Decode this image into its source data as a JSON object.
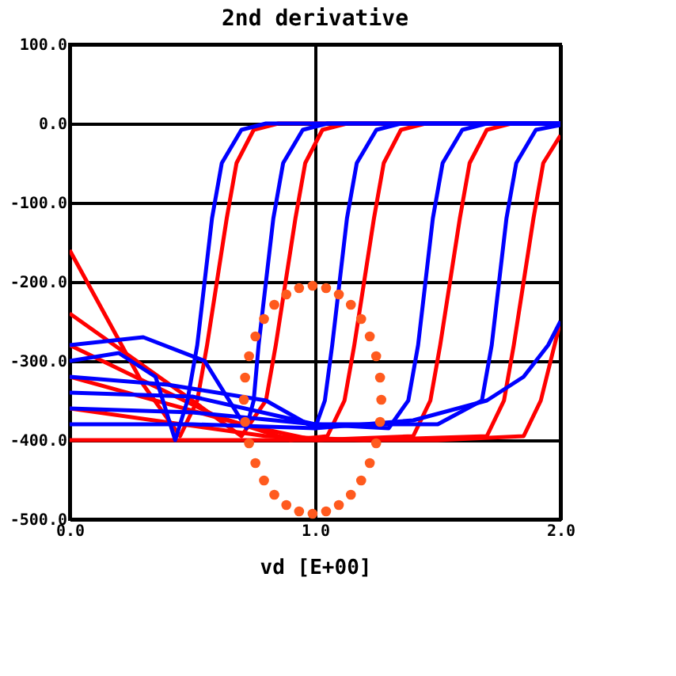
{
  "chart_data": {
    "type": "line",
    "title": "2nd derivative",
    "xlabel": "vd   [E+00]",
    "xlim": [
      0,
      2
    ],
    "xticks": [
      {
        "value": 0,
        "label": "0.0"
      },
      {
        "value": 1,
        "label": "1.0"
      },
      {
        "value": 2,
        "label": "2.0"
      }
    ],
    "ylim": [
      -500,
      100
    ],
    "yticks": [
      {
        "value": 100,
        "label": "100.0"
      },
      {
        "value": 0,
        "label": "0.0"
      },
      {
        "value": -100,
        "label": "-100.0"
      },
      {
        "value": -200,
        "label": "-200.0"
      },
      {
        "value": -300,
        "label": "-300.0"
      },
      {
        "value": -400,
        "label": "-400.0"
      },
      {
        "value": -500,
        "label": "-500.0"
      }
    ],
    "grid": true,
    "legend": false,
    "line_style": "solid",
    "marker": "none",
    "series": [
      {
        "color": "#ff0000",
        "x": [
          0,
          0.3,
          0.45,
          0.52,
          0.56,
          0.6,
          0.64,
          0.68,
          0.75,
          0.85,
          2.0
        ],
        "values": [
          -160,
          -330,
          -395,
          -350,
          -280,
          -200,
          -120,
          -50,
          -8,
          0,
          0
        ]
      },
      {
        "color": "#ff0000",
        "x": [
          0,
          0.5,
          0.7,
          0.8,
          0.84,
          0.88,
          0.92,
          0.96,
          1.03,
          1.13,
          2.0
        ],
        "values": [
          -240,
          -350,
          -395,
          -350,
          -280,
          -200,
          -120,
          -50,
          -8,
          0,
          0
        ]
      },
      {
        "color": "#ff0000",
        "x": [
          0,
          0.6,
          0.9,
          1.05,
          1.12,
          1.16,
          1.2,
          1.24,
          1.28,
          1.35,
          1.45,
          2.0
        ],
        "values": [
          -280,
          -370,
          -400,
          -395,
          -350,
          -280,
          -200,
          -120,
          -50,
          -8,
          0,
          0
        ]
      },
      {
        "color": "#ff0000",
        "x": [
          0,
          0.7,
          1.0,
          1.4,
          1.47,
          1.51,
          1.55,
          1.59,
          1.63,
          1.7,
          1.8,
          2.0
        ],
        "values": [
          -320,
          -380,
          -400,
          -395,
          -350,
          -280,
          -200,
          -120,
          -50,
          -8,
          0,
          0
        ]
      },
      {
        "color": "#ff0000",
        "x": [
          0,
          0.8,
          1.2,
          1.7,
          1.77,
          1.81,
          1.85,
          1.89,
          1.93,
          2.0
        ],
        "values": [
          -360,
          -395,
          -400,
          -395,
          -350,
          -280,
          -200,
          -120,
          -50,
          -15
        ]
      },
      {
        "color": "#ff0000",
        "x": [
          0,
          1.0,
          1.5,
          1.85,
          1.92,
          1.96,
          2.0
        ],
        "values": [
          -400,
          -400,
          -400,
          -395,
          -350,
          -300,
          -250
        ]
      },
      {
        "color": "#0000ff",
        "x": [
          0,
          0.2,
          0.35,
          0.43,
          0.48,
          0.52,
          0.55,
          0.58,
          0.62,
          0.7,
          0.8,
          2.0
        ],
        "values": [
          -300,
          -290,
          -320,
          -400,
          -350,
          -280,
          -200,
          -120,
          -50,
          -8,
          0,
          0
        ]
      },
      {
        "color": "#0000ff",
        "x": [
          0,
          0.3,
          0.55,
          0.72,
          0.75,
          0.77,
          0.8,
          0.83,
          0.87,
          0.95,
          1.05,
          2.0
        ],
        "values": [
          -280,
          -270,
          -300,
          -385,
          -350,
          -280,
          -200,
          -120,
          -50,
          -8,
          0,
          0
        ]
      },
      {
        "color": "#0000ff",
        "x": [
          0,
          0.4,
          0.8,
          1.0,
          1.04,
          1.07,
          1.1,
          1.13,
          1.17,
          1.25,
          1.35,
          2.0
        ],
        "values": [
          -320,
          -330,
          -350,
          -385,
          -350,
          -280,
          -200,
          -120,
          -50,
          -8,
          0,
          0
        ]
      },
      {
        "color": "#0000ff",
        "x": [
          0,
          0.5,
          1.0,
          1.3,
          1.38,
          1.42,
          1.45,
          1.48,
          1.52,
          1.6,
          1.7,
          2.0
        ],
        "values": [
          -340,
          -345,
          -380,
          -385,
          -350,
          -280,
          -200,
          -120,
          -50,
          -8,
          0,
          0
        ]
      },
      {
        "color": "#0000ff",
        "x": [
          0,
          0.5,
          1.0,
          1.5,
          1.68,
          1.72,
          1.75,
          1.78,
          1.82,
          1.9,
          2.0
        ],
        "values": [
          -360,
          -365,
          -380,
          -380,
          -350,
          -280,
          -200,
          -120,
          -50,
          -8,
          -2
        ]
      },
      {
        "color": "#0000ff",
        "x": [
          0,
          0.5,
          1.0,
          1.4,
          1.7,
          1.85,
          1.95,
          2.0
        ],
        "values": [
          -380,
          -380,
          -385,
          -375,
          -350,
          -320,
          -280,
          -250
        ]
      },
      {
        "type": "scatter",
        "marker": "circle",
        "color": "#ff5a1e",
        "x": [
          1.27,
          1.265,
          1.249,
          1.223,
          1.188,
          1.146,
          1.097,
          1.045,
          0.99,
          0.935,
          0.883,
          0.834,
          0.792,
          0.757,
          0.731,
          0.715,
          0.71,
          0.715,
          0.731,
          0.757,
          0.792,
          0.834,
          0.883,
          0.935,
          0.99,
          1.045,
          1.097,
          1.146,
          1.188,
          1.223,
          1.249,
          1.265
        ],
        "values": [
          -349,
          -321,
          -294,
          -269,
          -247,
          -229,
          -216,
          -208,
          -205,
          -208,
          -216,
          -229,
          -247,
          -269,
          -294,
          -321,
          -349,
          -377,
          -404,
          -429,
          -451,
          -469,
          -482,
          -490,
          -493,
          -490,
          -482,
          -469,
          -451,
          -429,
          -404,
          -377
        ]
      }
    ]
  }
}
